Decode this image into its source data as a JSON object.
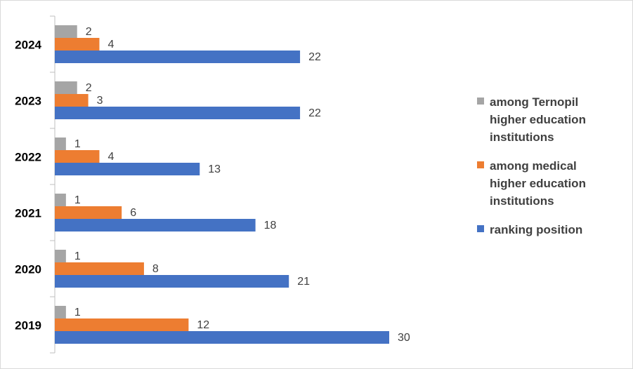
{
  "chart_data": {
    "type": "bar",
    "orientation": "horizontal",
    "categories": [
      "2024",
      "2023",
      "2022",
      "2021",
      "2020",
      "2019"
    ],
    "series": [
      {
        "name": "among Ternopil higher education institutions",
        "color": "#a5a5a5",
        "values": [
          2,
          2,
          1,
          1,
          1,
          1
        ]
      },
      {
        "name": "among medical higher education institutions",
        "color": "#ed7d31",
        "values": [
          4,
          3,
          4,
          6,
          8,
          12
        ]
      },
      {
        "name": "ranking position",
        "color": "#4472c4",
        "values": [
          22,
          22,
          13,
          18,
          21,
          30
        ]
      }
    ],
    "legend": "right"
  }
}
